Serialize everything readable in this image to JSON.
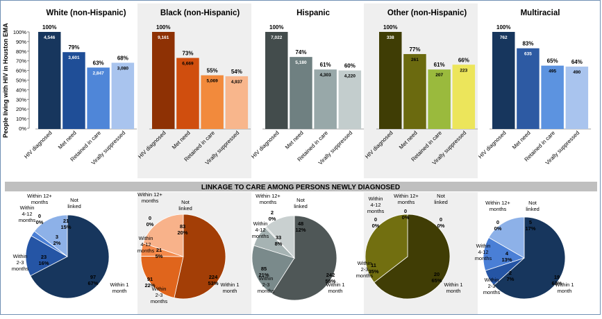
{
  "chart_data": {
    "type": "bar",
    "ylabel": "People living with HIV in Houston EMA",
    "ylim": [
      0,
      100
    ],
    "y_ticks": [
      "0%",
      "10%",
      "20%",
      "30%",
      "40%",
      "50%",
      "60%",
      "70%",
      "80%",
      "90%",
      "100%"
    ],
    "categories": [
      "HIV diagnosed",
      "Met need",
      "Retained in care",
      "Virally suppressed"
    ],
    "groups": [
      {
        "title": "White (non-Hispanic)",
        "percent_labels": [
          "100%",
          "79%",
          "63%",
          "68%"
        ],
        "values": [
          100,
          79,
          63,
          68
        ],
        "counts": [
          "4,546",
          "3,601",
          "2,847",
          "3,080"
        ],
        "colors": [
          "#17365d",
          "#1f4e97",
          "#4f86d8",
          "#a9c4ee"
        ],
        "count_text_colors": [
          "#ffffff",
          "#ffffff",
          "#ffffff",
          "#000000"
        ]
      },
      {
        "title": "Black (non-Hispanic)",
        "percent_labels": [
          "100%",
          "73%",
          "55%",
          "54%"
        ],
        "values": [
          100,
          73,
          55,
          54
        ],
        "counts": [
          "9,161",
          "6,669",
          "5,069",
          "4,937"
        ],
        "colors": [
          "#8e3104",
          "#d04e0e",
          "#f28a3c",
          "#f8b68c"
        ],
        "count_text_colors": [
          "#ffffff",
          "#000000",
          "#000000",
          "#000000"
        ]
      },
      {
        "title": "Hispanic",
        "percent_labels": [
          "100%",
          "74%",
          "61%",
          "60%"
        ],
        "values": [
          100,
          74,
          61,
          60
        ],
        "counts": [
          "7,022",
          "5,180",
          "4,303",
          "4,220"
        ],
        "colors": [
          "#434c4c",
          "#6f8081",
          "#98a8a9",
          "#c3cdcd"
        ],
        "count_text_colors": [
          "#ffffff",
          "#ffffff",
          "#000000",
          "#000000"
        ]
      },
      {
        "title": "Other (non-Hispanic)",
        "percent_labels": [
          "100%",
          "77%",
          "61%",
          "66%"
        ],
        "values": [
          100,
          77,
          61,
          66
        ],
        "counts": [
          "338",
          "261",
          "207",
          "223"
        ],
        "colors": [
          "#3f3d05",
          "#6b6a0f",
          "#9aba3d",
          "#ece55b"
        ],
        "count_text_colors": [
          "#ffffff",
          "#000000",
          "#000000",
          "#000000"
        ]
      },
      {
        "title": "Multiracial",
        "percent_labels": [
          "100%",
          "83%",
          "65%",
          "64%"
        ],
        "values": [
          100,
          83,
          65,
          64
        ],
        "counts": [
          "762",
          "635",
          "495",
          "490"
        ],
        "colors": [
          "#17365d",
          "#2d5aa3",
          "#5c93e0",
          "#a9c4ee"
        ],
        "count_text_colors": [
          "#ffffff",
          "#ffffff",
          "#000000",
          "#000000"
        ]
      }
    ],
    "pie_title": "LINKAGE TO CARE AMONG PERSONS NEWLY DIAGNOSED",
    "pies": [
      {
        "type": "pie",
        "colors": [
          "#17365d",
          "#2555a5",
          "#4a7fd6",
          "#8db1e8"
        ],
        "slices": [
          {
            "label": "Within 1 month",
            "value": 97,
            "percent": "67%",
            "count_text": "97"
          },
          {
            "label": "Within 2-3 months",
            "value": 23,
            "percent": "16%",
            "count_text": "23"
          },
          {
            "label": "Within 4-12 months",
            "value": 3,
            "percent": "2%",
            "count_text": "3"
          },
          {
            "label": "Within 12+ months",
            "value": 0,
            "percent": "0%",
            "count_text": "0"
          },
          {
            "label": "Not linked",
            "value": 21,
            "percent": "15%",
            "count_text": "21"
          }
        ]
      },
      {
        "type": "pie",
        "colors": [
          "#a33e06",
          "#e0651c",
          "#f4894a",
          "#f8b28a"
        ],
        "slices": [
          {
            "label": "Within 1 month",
            "value": 224,
            "percent": "53%",
            "count_text": "224"
          },
          {
            "label": "Within 2-3 months",
            "value": 91,
            "percent": "22%",
            "count_text": "91"
          },
          {
            "label": "Within 4-12 months",
            "value": 21,
            "percent": "5%",
            "count_text": "21"
          },
          {
            "label": "Within 12+ months",
            "value": 0,
            "percent": "0%",
            "count_text": "0"
          },
          {
            "label": "Not linked",
            "value": 83,
            "percent": "20%",
            "count_text": "83"
          }
        ]
      },
      {
        "type": "pie",
        "colors": [
          "#4f5757",
          "#7a8a8b",
          "#a6b3b3",
          "#c9d0d0"
        ],
        "slices": [
          {
            "label": "Within 1 month",
            "value": 242,
            "percent": "59%",
            "count_text": "242"
          },
          {
            "label": "Within 2-3 months",
            "value": 85,
            "percent": "21%",
            "count_text": "85"
          },
          {
            "label": "Within 4-12 months",
            "value": 33,
            "percent": "8%",
            "count_text": "33"
          },
          {
            "label": "Within 12+ months",
            "value": 2,
            "percent": "0%",
            "count_text": "2"
          },
          {
            "label": "Not linked",
            "value": 48,
            "percent": "12%",
            "count_text": "48"
          }
        ]
      },
      {
        "type": "pie",
        "colors": [
          "#403d05",
          "#726f10",
          "#9aba3d",
          "#ece55b"
        ],
        "slices": [
          {
            "label": "Within 1 month",
            "value": 20,
            "percent": "65%",
            "count_text": "20"
          },
          {
            "label": "Within 2-3 months",
            "value": 11,
            "percent": "35%",
            "count_text": "11"
          },
          {
            "label": "Within 4-12 months",
            "value": 0,
            "percent": "0%",
            "count_text": "0"
          },
          {
            "label": "Within 12+ months",
            "value": 0,
            "percent": "0%",
            "count_text": "0"
          },
          {
            "label": "Not linked",
            "value": 0,
            "percent": "0%",
            "count_text": "0"
          }
        ]
      },
      {
        "type": "pie",
        "colors": [
          "#17365d",
          "#2555a5",
          "#4a7fd6",
          "#8db1e8"
        ],
        "slices": [
          {
            "label": "Within 1 month",
            "value": 19,
            "percent": "63%",
            "count_text": "19"
          },
          {
            "label": "Within 2-3 months",
            "value": 2,
            "percent": "7%",
            "count_text": "2"
          },
          {
            "label": "Within 4-12 months",
            "value": 4,
            "percent": "13%",
            "count_text": "4"
          },
          {
            "label": "Within 12+ months",
            "value": 0,
            "percent": "0%",
            "count_text": "0"
          },
          {
            "label": "Not linked",
            "value": 5,
            "percent": "17%",
            "count_text": "5"
          }
        ]
      }
    ]
  }
}
